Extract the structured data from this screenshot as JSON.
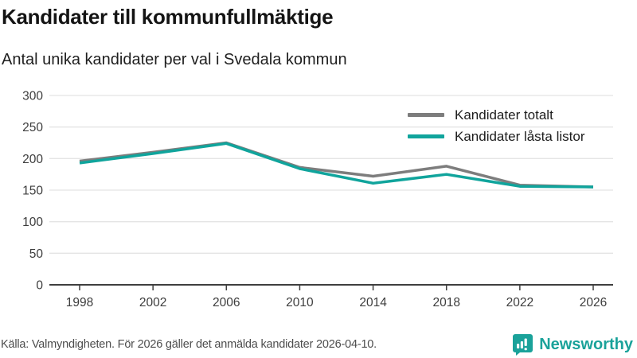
{
  "header": {
    "title": "Kandidater till kommunfullmäktige",
    "subtitle": "Antal unika kandidater per val i Svedala kommun"
  },
  "chart_data": {
    "type": "line",
    "title": "Kandidater till kommunfullmäktige",
    "subtitle": "Antal unika kandidater per val i Svedala kommun",
    "x": [
      1998,
      2002,
      2006,
      2010,
      2014,
      2018,
      2022,
      2026
    ],
    "series": [
      {
        "name": "Kandidater totalt",
        "color": "#7d7d7d",
        "values": [
          196,
          210,
          225,
          186,
          172,
          188,
          158,
          155
        ]
      },
      {
        "name": "Kandidater låsta listor",
        "color": "#10a49c",
        "values": [
          193,
          208,
          224,
          184,
          161,
          175,
          156,
          155
        ]
      }
    ],
    "xlabel": "",
    "ylabel": "",
    "ylim": [
      0,
      300
    ],
    "yticks": [
      0,
      50,
      100,
      150,
      200,
      250,
      300
    ],
    "grid": true,
    "legend_position": "top-right"
  },
  "footer": {
    "source": "Källa: Valmyndigheten. För 2026 gäller det anmälda kandidater 2026-04-10.",
    "brand": "Newsworthy"
  },
  "colors": {
    "accent_teal": "#10a49c",
    "series_gray": "#7d7d7d",
    "grid": "#e4e4e4",
    "axis": "#3f3f3f",
    "brand_teal": "#1aa29a"
  }
}
